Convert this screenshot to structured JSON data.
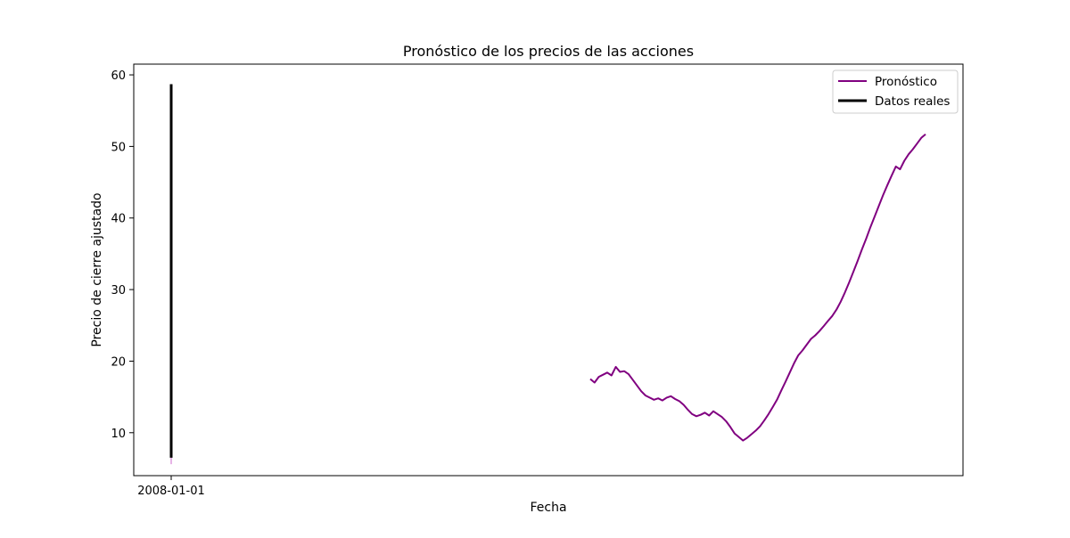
{
  "chart_data": {
    "type": "line",
    "title": "Pronóstico de los precios de las acciones",
    "xlabel": "Fecha",
    "ylabel": "Precio de cierre ajustado",
    "ylim": [
      4,
      61.5
    ],
    "yticks": [
      10,
      20,
      30,
      40,
      50,
      60
    ],
    "x_tick_label": "2008-01-01",
    "grid": false,
    "legend_position": "top-right",
    "series": [
      {
        "name": "Pronóstico",
        "color": "#800080",
        "values": [
          17.5,
          17.0,
          17.8,
          18.1,
          18.4,
          18.0,
          19.2,
          18.5,
          18.6,
          18.2,
          17.4,
          16.6,
          15.8,
          15.2,
          14.9,
          14.6,
          14.8,
          14.5,
          14.9,
          15.1,
          14.7,
          14.4,
          13.9,
          13.2,
          12.6,
          12.3,
          12.5,
          12.8,
          12.4,
          13.0,
          12.6,
          12.2,
          11.6,
          10.8,
          9.9,
          9.4,
          8.9,
          9.3,
          9.8,
          10.3,
          10.9,
          11.7,
          12.6,
          13.6,
          14.6,
          15.9,
          17.1,
          18.4,
          19.7,
          20.8,
          21.5,
          22.3,
          23.1,
          23.6,
          24.2,
          24.9,
          25.6,
          26.3,
          27.2,
          28.3,
          29.6,
          31.0,
          32.5,
          34.0,
          35.6,
          37.1,
          38.7,
          40.2,
          41.7,
          43.2,
          44.6,
          45.9,
          47.2,
          46.8,
          48.0,
          48.9,
          49.6,
          50.4,
          51.2,
          51.7
        ]
      },
      {
        "name": "Datos reales",
        "color": "#000000",
        "y_range": [
          6.5,
          58.7
        ]
      }
    ]
  }
}
